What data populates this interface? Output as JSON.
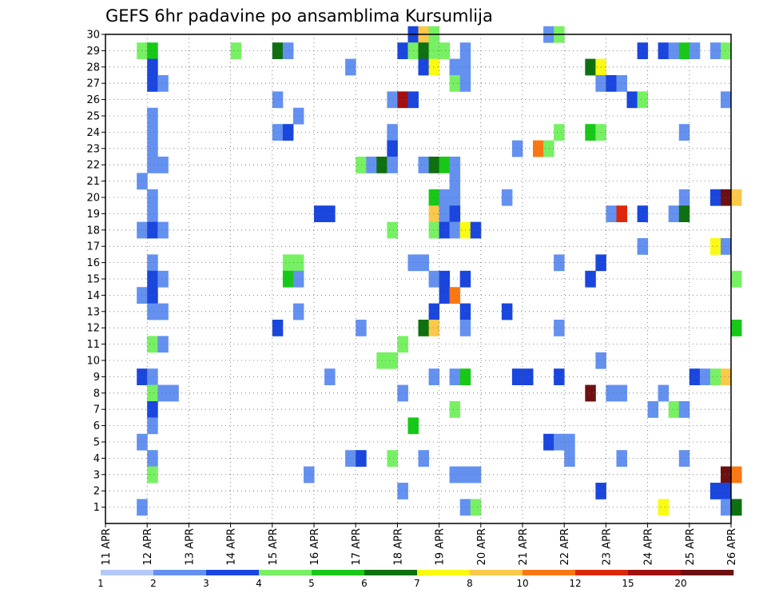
{
  "chart_data": {
    "type": "heatmap",
    "title": "GEFS 6hr padavine po ansamblima Kursumlija",
    "xlabel": "",
    "ylabel": "",
    "x_tick_labels": [
      "11 APR",
      "12 APR",
      "13 APR",
      "14 APR",
      "15 APR",
      "16 APR",
      "17 APR",
      "18 APR",
      "19 APR",
      "20 APR",
      "21 APR",
      "22 APR",
      "23 APR",
      "24 APR",
      "25 APR",
      "26 APR"
    ],
    "y_tick_labels": [
      "1",
      "2",
      "3",
      "4",
      "5",
      "6",
      "7",
      "8",
      "9",
      "10",
      "11",
      "12",
      "13",
      "14",
      "15",
      "16",
      "17",
      "18",
      "19",
      "20",
      "21",
      "22",
      "23",
      "24",
      "25",
      "26",
      "27",
      "28",
      "29",
      "30"
    ],
    "x_range": [
      "11 APR",
      "26 APR"
    ],
    "y_range": [
      0,
      30
    ],
    "time_step_hours": 6,
    "grid": true,
    "colorbar": {
      "levels": [
        "1",
        "2",
        "3",
        "4",
        "5",
        "6",
        "7",
        "8",
        "10",
        "12",
        "15",
        "20"
      ],
      "colors": [
        "#b4c8f8",
        "#6491f0",
        "#1a46de",
        "#78f064",
        "#18c818",
        "#0e7010",
        "#fafa14",
        "#fac84b",
        "#fa7814",
        "#dc280a",
        "#a01010",
        "#6e1010"
      ]
    },
    "cells": [
      {
        "member": 30,
        "time": "18 APR 06Z",
        "value": 3
      },
      {
        "member": 30,
        "time": "18 APR 12Z",
        "value": 8
      },
      {
        "member": 30,
        "time": "18 APR 18Z",
        "value": 4
      },
      {
        "member": 30,
        "time": "21 APR 12Z",
        "value": 2
      },
      {
        "member": 30,
        "time": "21 APR 18Z",
        "value": 4
      },
      {
        "member": 29,
        "time": "11 APR 18Z",
        "value": 4
      },
      {
        "member": 29,
        "time": "12 APR 00Z",
        "value": 5
      },
      {
        "member": 29,
        "time": "14 APR 00Z",
        "value": 4
      },
      {
        "member": 29,
        "time": "15 APR 00Z",
        "value": 6
      },
      {
        "member": 29,
        "time": "15 APR 06Z",
        "value": 2
      },
      {
        "member": 29,
        "time": "18 APR 00Z",
        "value": 3
      },
      {
        "member": 29,
        "time": "18 APR 06Z",
        "value": 4
      },
      {
        "member": 29,
        "time": "18 APR 12Z",
        "value": 6
      },
      {
        "member": 29,
        "time": "18 APR 18Z",
        "value": 4
      },
      {
        "member": 29,
        "time": "19 APR 00Z",
        "value": 4
      },
      {
        "member": 29,
        "time": "19 APR 12Z",
        "value": 2
      },
      {
        "member": 29,
        "time": "23 APR 18Z",
        "value": 3
      },
      {
        "member": 29,
        "time": "24 APR 06Z",
        "value": 3
      },
      {
        "member": 29,
        "time": "24 APR 12Z",
        "value": 2
      },
      {
        "member": 29,
        "time": "24 APR 18Z",
        "value": 5
      },
      {
        "member": 29,
        "time": "25 APR 00Z",
        "value": 2
      },
      {
        "member": 29,
        "time": "25 APR 12Z",
        "value": 2
      },
      {
        "member": 29,
        "time": "25 APR 18Z",
        "value": 4
      },
      {
        "member": 28,
        "time": "12 APR 00Z",
        "value": 3
      },
      {
        "member": 28,
        "time": "16 APR 18Z",
        "value": 2
      },
      {
        "member": 28,
        "time": "18 APR 12Z",
        "value": 3
      },
      {
        "member": 28,
        "time": "18 APR 18Z",
        "value": 7
      },
      {
        "member": 28,
        "time": "19 APR 06Z",
        "value": 2
      },
      {
        "member": 28,
        "time": "19 APR 12Z",
        "value": 2
      },
      {
        "member": 28,
        "time": "22 APR 12Z",
        "value": 6
      },
      {
        "member": 28,
        "time": "22 APR 18Z",
        "value": 7
      },
      {
        "member": 27,
        "time": "12 APR 00Z",
        "value": 3
      },
      {
        "member": 27,
        "time": "12 APR 06Z",
        "value": 2
      },
      {
        "member": 27,
        "time": "19 APR 06Z",
        "value": 4
      },
      {
        "member": 27,
        "time": "19 APR 12Z",
        "value": 2
      },
      {
        "member": 27,
        "time": "22 APR 18Z",
        "value": 2
      },
      {
        "member": 27,
        "time": "23 APR 00Z",
        "value": 3
      },
      {
        "member": 27,
        "time": "23 APR 06Z",
        "value": 2
      },
      {
        "member": 26,
        "time": "15 APR 00Z",
        "value": 2
      },
      {
        "member": 26,
        "time": "17 APR 18Z",
        "value": 2
      },
      {
        "member": 26,
        "time": "18 APR 00Z",
        "value": 15
      },
      {
        "member": 26,
        "time": "18 APR 06Z",
        "value": 3
      },
      {
        "member": 26,
        "time": "23 APR 12Z",
        "value": 3
      },
      {
        "member": 26,
        "time": "23 APR 18Z",
        "value": 4
      },
      {
        "member": 26,
        "time": "25 APR 18Z",
        "value": 2
      },
      {
        "member": 25,
        "time": "12 APR 00Z",
        "value": 2
      },
      {
        "member": 25,
        "time": "15 APR 12Z",
        "value": 2
      },
      {
        "member": 24,
        "time": "12 APR 00Z",
        "value": 2
      },
      {
        "member": 24,
        "time": "15 APR 00Z",
        "value": 2
      },
      {
        "member": 24,
        "time": "15 APR 06Z",
        "value": 3
      },
      {
        "member": 24,
        "time": "17 APR 18Z",
        "value": 2
      },
      {
        "member": 24,
        "time": "21 APR 18Z",
        "value": 4
      },
      {
        "member": 24,
        "time": "22 APR 12Z",
        "value": 5
      },
      {
        "member": 24,
        "time": "22 APR 18Z",
        "value": 4
      },
      {
        "member": 24,
        "time": "24 APR 18Z",
        "value": 2
      },
      {
        "member": 23,
        "time": "12 APR 00Z",
        "value": 2
      },
      {
        "member": 23,
        "time": "17 APR 18Z",
        "value": 3
      },
      {
        "member": 23,
        "time": "20 APR 18Z",
        "value": 2
      },
      {
        "member": 23,
        "time": "21 APR 06Z",
        "value": 10
      },
      {
        "member": 23,
        "time": "21 APR 12Z",
        "value": 4
      },
      {
        "member": 22,
        "time": "12 APR 00Z",
        "value": 2
      },
      {
        "member": 22,
        "time": "12 APR 06Z",
        "value": 2
      },
      {
        "member": 22,
        "time": "17 APR 00Z",
        "value": 4
      },
      {
        "member": 22,
        "time": "17 APR 06Z",
        "value": 2
      },
      {
        "member": 22,
        "time": "17 APR 12Z",
        "value": 6
      },
      {
        "member": 22,
        "time": "17 APR 18Z",
        "value": 2
      },
      {
        "member": 22,
        "time": "18 APR 12Z",
        "value": 2
      },
      {
        "member": 22,
        "time": "18 APR 18Z",
        "value": 6
      },
      {
        "member": 22,
        "time": "19 APR 00Z",
        "value": 5
      },
      {
        "member": 22,
        "time": "19 APR 06Z",
        "value": 2
      },
      {
        "member": 21,
        "time": "11 APR 18Z",
        "value": 2
      },
      {
        "member": 21,
        "time": "19 APR 06Z",
        "value": 2
      },
      {
        "member": 20,
        "time": "12 APR 00Z",
        "value": 2
      },
      {
        "member": 20,
        "time": "18 APR 18Z",
        "value": 5
      },
      {
        "member": 20,
        "time": "19 APR 00Z",
        "value": 2
      },
      {
        "member": 20,
        "time": "19 APR 06Z",
        "value": 2
      },
      {
        "member": 20,
        "time": "20 APR 12Z",
        "value": 2
      },
      {
        "member": 20,
        "time": "24 APR 18Z",
        "value": 2
      },
      {
        "member": 20,
        "time": "25 APR 12Z",
        "value": 3
      },
      {
        "member": 20,
        "time": "25 APR 18Z",
        "value": 20
      },
      {
        "member": 20,
        "time": "26 APR 00Z",
        "value": 8
      },
      {
        "member": 19,
        "time": "12 APR 00Z",
        "value": 2
      },
      {
        "member": 19,
        "time": "16 APR 00Z",
        "value": 3
      },
      {
        "member": 19,
        "time": "16 APR 06Z",
        "value": 3
      },
      {
        "member": 19,
        "time": "18 APR 18Z",
        "value": 8
      },
      {
        "member": 19,
        "time": "19 APR 00Z",
        "value": 2
      },
      {
        "member": 19,
        "time": "19 APR 06Z",
        "value": 3
      },
      {
        "member": 19,
        "time": "23 APR 00Z",
        "value": 2
      },
      {
        "member": 19,
        "time": "23 APR 06Z",
        "value": 12
      },
      {
        "member": 19,
        "time": "23 APR 18Z",
        "value": 3
      },
      {
        "member": 19,
        "time": "24 APR 12Z",
        "value": 2
      },
      {
        "member": 19,
        "time": "24 APR 18Z",
        "value": 6
      },
      {
        "member": 18,
        "time": "11 APR 18Z",
        "value": 2
      },
      {
        "member": 18,
        "time": "12 APR 00Z",
        "value": 3
      },
      {
        "member": 18,
        "time": "12 APR 06Z",
        "value": 2
      },
      {
        "member": 18,
        "time": "17 APR 18Z",
        "value": 4
      },
      {
        "member": 18,
        "time": "18 APR 18Z",
        "value": 4
      },
      {
        "member": 18,
        "time": "19 APR 00Z",
        "value": 3
      },
      {
        "member": 18,
        "time": "19 APR 06Z",
        "value": 2
      },
      {
        "member": 18,
        "time": "19 APR 12Z",
        "value": 7
      },
      {
        "member": 18,
        "time": "19 APR 18Z",
        "value": 3
      },
      {
        "member": 17,
        "time": "23 APR 18Z",
        "value": 2
      },
      {
        "member": 17,
        "time": "25 APR 12Z",
        "value": 7
      },
      {
        "member": 17,
        "time": "25 APR 18Z",
        "value": 2
      },
      {
        "member": 16,
        "time": "12 APR 00Z",
        "value": 2
      },
      {
        "member": 16,
        "time": "15 APR 06Z",
        "value": 4
      },
      {
        "member": 16,
        "time": "15 APR 12Z",
        "value": 4
      },
      {
        "member": 16,
        "time": "18 APR 06Z",
        "value": 2
      },
      {
        "member": 16,
        "time": "18 APR 12Z",
        "value": 2
      },
      {
        "member": 16,
        "time": "21 APR 18Z",
        "value": 2
      },
      {
        "member": 16,
        "time": "22 APR 18Z",
        "value": 3
      },
      {
        "member": 15,
        "time": "12 APR 00Z",
        "value": 3
      },
      {
        "member": 15,
        "time": "12 APR 06Z",
        "value": 2
      },
      {
        "member": 15,
        "time": "15 APR 06Z",
        "value": 5
      },
      {
        "member": 15,
        "time": "15 APR 12Z",
        "value": 2
      },
      {
        "member": 15,
        "time": "18 APR 18Z",
        "value": 2
      },
      {
        "member": 15,
        "time": "19 APR 00Z",
        "value": 3
      },
      {
        "member": 15,
        "time": "19 APR 12Z",
        "value": 3
      },
      {
        "member": 15,
        "time": "22 APR 12Z",
        "value": 3
      },
      {
        "member": 15,
        "time": "26 APR 00Z",
        "value": 4
      },
      {
        "member": 14,
        "time": "11 APR 18Z",
        "value": 2
      },
      {
        "member": 14,
        "time": "12 APR 00Z",
        "value": 3
      },
      {
        "member": 14,
        "time": "19 APR 00Z",
        "value": 3
      },
      {
        "member": 14,
        "time": "19 APR 06Z",
        "value": 10
      },
      {
        "member": 13,
        "time": "12 APR 00Z",
        "value": 2
      },
      {
        "member": 13,
        "time": "12 APR 06Z",
        "value": 2
      },
      {
        "member": 13,
        "time": "15 APR 12Z",
        "value": 2
      },
      {
        "member": 13,
        "time": "18 APR 18Z",
        "value": 3
      },
      {
        "member": 13,
        "time": "19 APR 12Z",
        "value": 3
      },
      {
        "member": 13,
        "time": "20 APR 12Z",
        "value": 3
      },
      {
        "member": 12,
        "time": "15 APR 00Z",
        "value": 3
      },
      {
        "member": 12,
        "time": "17 APR 00Z",
        "value": 2
      },
      {
        "member": 12,
        "time": "18 APR 12Z",
        "value": 6
      },
      {
        "member": 12,
        "time": "18 APR 18Z",
        "value": 8
      },
      {
        "member": 12,
        "time": "19 APR 12Z",
        "value": 2
      },
      {
        "member": 12,
        "time": "21 APR 18Z",
        "value": 2
      },
      {
        "member": 12,
        "time": "26 APR 00Z",
        "value": 5
      },
      {
        "member": 11,
        "time": "12 APR 00Z",
        "value": 4
      },
      {
        "member": 11,
        "time": "12 APR 06Z",
        "value": 2
      },
      {
        "member": 11,
        "time": "18 APR 00Z",
        "value": 4
      },
      {
        "member": 10,
        "time": "17 APR 12Z",
        "value": 4
      },
      {
        "member": 10,
        "time": "17 APR 18Z",
        "value": 4
      },
      {
        "member": 10,
        "time": "22 APR 18Z",
        "value": 2
      },
      {
        "member": 9,
        "time": "11 APR 18Z",
        "value": 3
      },
      {
        "member": 9,
        "time": "12 APR 00Z",
        "value": 2
      },
      {
        "member": 9,
        "time": "16 APR 06Z",
        "value": 2
      },
      {
        "member": 9,
        "time": "18 APR 18Z",
        "value": 2
      },
      {
        "member": 9,
        "time": "19 APR 06Z",
        "value": 2
      },
      {
        "member": 9,
        "time": "19 APR 12Z",
        "value": 5
      },
      {
        "member": 9,
        "time": "20 APR 18Z",
        "value": 3
      },
      {
        "member": 9,
        "time": "21 APR 00Z",
        "value": 3
      },
      {
        "member": 9,
        "time": "21 APR 18Z",
        "value": 3
      },
      {
        "member": 9,
        "time": "25 APR 00Z",
        "value": 3
      },
      {
        "member": 9,
        "time": "25 APR 06Z",
        "value": 2
      },
      {
        "member": 9,
        "time": "25 APR 12Z",
        "value": 4
      },
      {
        "member": 9,
        "time": "25 APR 18Z",
        "value": 8
      },
      {
        "member": 8,
        "time": "12 APR 00Z",
        "value": 4
      },
      {
        "member": 8,
        "time": "12 APR 06Z",
        "value": 2
      },
      {
        "member": 8,
        "time": "12 APR 12Z",
        "value": 2
      },
      {
        "member": 8,
        "time": "18 APR 00Z",
        "value": 2
      },
      {
        "member": 8,
        "time": "22 APR 12Z",
        "value": 20
      },
      {
        "member": 8,
        "time": "23 APR 00Z",
        "value": 2
      },
      {
        "member": 8,
        "time": "23 APR 06Z",
        "value": 2
      },
      {
        "member": 8,
        "time": "24 APR 06Z",
        "value": 2
      },
      {
        "member": 7,
        "time": "12 APR 00Z",
        "value": 3
      },
      {
        "member": 7,
        "time": "19 APR 06Z",
        "value": 4
      },
      {
        "member": 7,
        "time": "24 APR 00Z",
        "value": 2
      },
      {
        "member": 7,
        "time": "24 APR 12Z",
        "value": 4
      },
      {
        "member": 7,
        "time": "24 APR 18Z",
        "value": 2
      },
      {
        "member": 6,
        "time": "12 APR 00Z",
        "value": 2
      },
      {
        "member": 6,
        "time": "18 APR 06Z",
        "value": 5
      },
      {
        "member": 5,
        "time": "11 APR 18Z",
        "value": 2
      },
      {
        "member": 5,
        "time": "21 APR 12Z",
        "value": 3
      },
      {
        "member": 5,
        "time": "21 APR 18Z",
        "value": 2
      },
      {
        "member": 5,
        "time": "22 APR 00Z",
        "value": 2
      },
      {
        "member": 4,
        "time": "12 APR 00Z",
        "value": 2
      },
      {
        "member": 4,
        "time": "16 APR 18Z",
        "value": 2
      },
      {
        "member": 4,
        "time": "17 APR 00Z",
        "value": 3
      },
      {
        "member": 4,
        "time": "17 APR 18Z",
        "value": 4
      },
      {
        "member": 4,
        "time": "18 APR 12Z",
        "value": 2
      },
      {
        "member": 4,
        "time": "22 APR 00Z",
        "value": 2
      },
      {
        "member": 4,
        "time": "23 APR 06Z",
        "value": 2
      },
      {
        "member": 4,
        "time": "24 APR 18Z",
        "value": 2
      },
      {
        "member": 3,
        "time": "12 APR 00Z",
        "value": 4
      },
      {
        "member": 3,
        "time": "15 APR 18Z",
        "value": 2
      },
      {
        "member": 3,
        "time": "19 APR 06Z",
        "value": 2
      },
      {
        "member": 3,
        "time": "19 APR 12Z",
        "value": 2
      },
      {
        "member": 3,
        "time": "19 APR 18Z",
        "value": 2
      },
      {
        "member": 3,
        "time": "25 APR 18Z",
        "value": 20
      },
      {
        "member": 3,
        "time": "26 APR 00Z",
        "value": 10
      },
      {
        "member": 2,
        "time": "18 APR 00Z",
        "value": 2
      },
      {
        "member": 2,
        "time": "22 APR 18Z",
        "value": 3
      },
      {
        "member": 2,
        "time": "25 APR 12Z",
        "value": 3
      },
      {
        "member": 2,
        "time": "25 APR 18Z",
        "value": 3
      },
      {
        "member": 1,
        "time": "11 APR 18Z",
        "value": 2
      },
      {
        "member": 1,
        "time": "19 APR 12Z",
        "value": 2
      },
      {
        "member": 1,
        "time": "19 APR 18Z",
        "value": 4
      },
      {
        "member": 1,
        "time": "24 APR 06Z",
        "value": 7
      },
      {
        "member": 1,
        "time": "25 APR 18Z",
        "value": 2
      },
      {
        "member": 1,
        "time": "26 APR 00Z",
        "value": 6
      }
    ]
  }
}
